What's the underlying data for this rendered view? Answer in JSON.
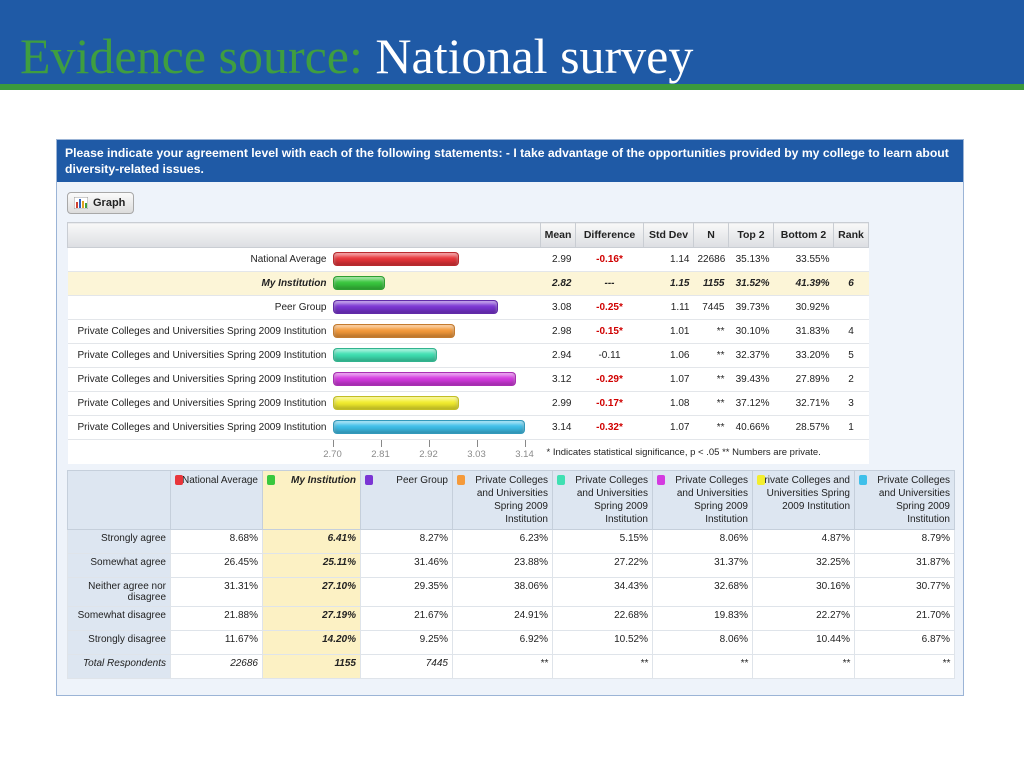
{
  "header": {
    "title_green": "Evidence source:",
    "title_white": "National survey"
  },
  "panel": {
    "question": "Please indicate your agreement level with each of the following statements: - I take advantage of the opportunities provided by my college to learn about diversity-related issues.",
    "graph_button": "Graph"
  },
  "upper_table": {
    "headers": {
      "mean": "Mean",
      "difference": "Difference",
      "stddev": "Std Dev",
      "n": "N",
      "top2": "Top 2",
      "bottom2": "Bottom 2",
      "rank": "Rank"
    },
    "rows": [
      {
        "label": "National Average",
        "mean": "2.99",
        "difference": "-0.16*",
        "stddev": "1.14",
        "n": "22686",
        "top2": "35.13%",
        "bottom2": "33.55%",
        "rank": "",
        "color": "#e8353a",
        "value": 2.99,
        "red": true,
        "highlight": false
      },
      {
        "label": "My Institution",
        "mean": "2.82",
        "difference": "---",
        "stddev": "1.15",
        "n": "1155",
        "top2": "31.52%",
        "bottom2": "41.39%",
        "rank": "6",
        "color": "#39c83e",
        "value": 2.82,
        "red": false,
        "highlight": true
      },
      {
        "label": "Peer Group",
        "mean": "3.08",
        "difference": "-0.25*",
        "stddev": "1.11",
        "n": "7445",
        "top2": "39.73%",
        "bottom2": "30.92%",
        "rank": "",
        "color": "#7b35d4",
        "value": 3.08,
        "red": true,
        "highlight": false
      },
      {
        "label": "Private Colleges and Universities Spring 2009 Institution",
        "mean": "2.98",
        "difference": "-0.15*",
        "stddev": "1.01",
        "n": "**",
        "top2": "30.10%",
        "bottom2": "31.83%",
        "rank": "4",
        "color": "#f59a3a",
        "value": 2.98,
        "red": true,
        "highlight": false
      },
      {
        "label": "Private Colleges and Universities Spring 2009 Institution",
        "mean": "2.94",
        "difference": "-0.11",
        "stddev": "1.06",
        "n": "**",
        "top2": "32.37%",
        "bottom2": "33.20%",
        "rank": "5",
        "color": "#3fe0b2",
        "value": 2.94,
        "red": false,
        "highlight": false
      },
      {
        "label": "Private Colleges and Universities Spring 2009 Institution",
        "mean": "3.12",
        "difference": "-0.29*",
        "stddev": "1.07",
        "n": "**",
        "top2": "39.43%",
        "bottom2": "27.89%",
        "rank": "2",
        "color": "#d43ae0",
        "value": 3.12,
        "red": true,
        "highlight": false
      },
      {
        "label": "Private Colleges and Universities Spring 2009 Institution",
        "mean": "2.99",
        "difference": "-0.17*",
        "stddev": "1.08",
        "n": "**",
        "top2": "37.12%",
        "bottom2": "32.71%",
        "rank": "3",
        "color": "#f3ee2e",
        "value": 2.99,
        "red": true,
        "highlight": false
      },
      {
        "label": "Private Colleges and Universities Spring 2009 Institution",
        "mean": "3.14",
        "difference": "-0.32*",
        "stddev": "1.07",
        "n": "**",
        "top2": "40.66%",
        "bottom2": "28.57%",
        "rank": "1",
        "color": "#3fc0ea",
        "value": 3.14,
        "red": true,
        "highlight": false
      }
    ],
    "axis_ticks": [
      "2.70",
      "2.81",
      "2.92",
      "3.03",
      "3.14"
    ],
    "footnote": "* Indicates statistical significance, p < .05   ** Numbers are private."
  },
  "chart_data": {
    "type": "bar",
    "orientation": "horizontal",
    "categories": [
      "National Average",
      "My Institution",
      "Peer Group",
      "Private Colleges and Universities Spring 2009 Institution",
      "Private Colleges and Universities Spring 2009 Institution",
      "Private Colleges and Universities Spring 2009 Institution",
      "Private Colleges and Universities Spring 2009 Institution",
      "Private Colleges and Universities Spring 2009 Institution"
    ],
    "values": [
      2.99,
      2.82,
      3.08,
      2.98,
      2.94,
      3.12,
      2.99,
      3.14
    ],
    "xlim": [
      2.7,
      3.14
    ],
    "xticks": [
      "2.70",
      "2.81",
      "2.92",
      "3.03",
      "3.14"
    ]
  },
  "lower_table": {
    "columns": [
      {
        "name": "National Average",
        "color": "#e8353a",
        "italic": false
      },
      {
        "name": "My Institution",
        "color": "#39c83e",
        "italic": true
      },
      {
        "name": "Peer Group",
        "color": "#7b35d4",
        "italic": false
      },
      {
        "name": "Private Colleges and Universities Spring 2009 Institution",
        "color": "#f59a3a",
        "italic": false
      },
      {
        "name": "Private Colleges and Universities Spring 2009 Institution",
        "color": "#3fe0b2",
        "italic": false
      },
      {
        "name": "Private Colleges and Universities Spring 2009 Institution",
        "color": "#d43ae0",
        "italic": false
      },
      {
        "name": "Private Colleges and Universities Spring 2009 Institution",
        "color": "#f3ee2e",
        "italic": false
      },
      {
        "name": "Private Colleges and Universities Spring 2009 Institution",
        "color": "#3fc0ea",
        "italic": false
      }
    ],
    "rows": [
      {
        "label": "Strongly agree",
        "values": [
          "8.68%",
          "6.41%",
          "8.27%",
          "6.23%",
          "5.15%",
          "8.06%",
          "4.87%",
          "8.79%"
        ],
        "italic": false
      },
      {
        "label": "Somewhat agree",
        "values": [
          "26.45%",
          "25.11%",
          "31.46%",
          "23.88%",
          "27.22%",
          "31.37%",
          "32.25%",
          "31.87%"
        ],
        "italic": false
      },
      {
        "label": "Neither agree nor disagree",
        "values": [
          "31.31%",
          "27.10%",
          "29.35%",
          "38.06%",
          "34.43%",
          "32.68%",
          "30.16%",
          "30.77%"
        ],
        "italic": false
      },
      {
        "label": "Somewhat disagree",
        "values": [
          "21.88%",
          "27.19%",
          "21.67%",
          "24.91%",
          "22.68%",
          "19.83%",
          "22.27%",
          "21.70%"
        ],
        "italic": false
      },
      {
        "label": "Strongly disagree",
        "values": [
          "11.67%",
          "14.20%",
          "9.25%",
          "6.92%",
          "10.52%",
          "8.06%",
          "10.44%",
          "6.87%"
        ],
        "italic": false
      },
      {
        "label": "Total Respondents",
        "values": [
          "22686",
          "1155",
          "7445",
          "**",
          "**",
          "**",
          "**",
          "**"
        ],
        "italic": true
      }
    ]
  }
}
